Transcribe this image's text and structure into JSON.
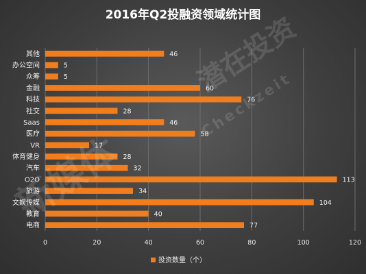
{
  "chart_data": {
    "type": "bar",
    "orientation": "horizontal",
    "title": "2016年Q2投融资领域统计图",
    "categories": [
      "其他",
      "办公空间",
      "众筹",
      "金融",
      "科技",
      "社交",
      "Saas",
      "医疗",
      "VR",
      "体育健身",
      "汽车",
      "O2O",
      "旅游",
      "文娱传媒",
      "教育",
      "电商"
    ],
    "series": [
      {
        "name": "投资数量（个）",
        "values": [
          46,
          5,
          5,
          60,
          76,
          28,
          46,
          58,
          17,
          28,
          32,
          113,
          34,
          104,
          40,
          77
        ]
      }
    ],
    "xlim": [
      0,
      120
    ],
    "xticks": [
      0,
      20,
      40,
      60,
      80,
      100,
      120
    ],
    "xlabel": "",
    "ylabel": "",
    "grid": true,
    "legend_position": "bottom",
    "bar_color": "#f07d1e",
    "grid_color": "#6e6e6e"
  },
  "watermark": {
    "text_1": "潜在投资",
    "text_2": "Checkzeit",
    "text_3": "新媒体"
  }
}
